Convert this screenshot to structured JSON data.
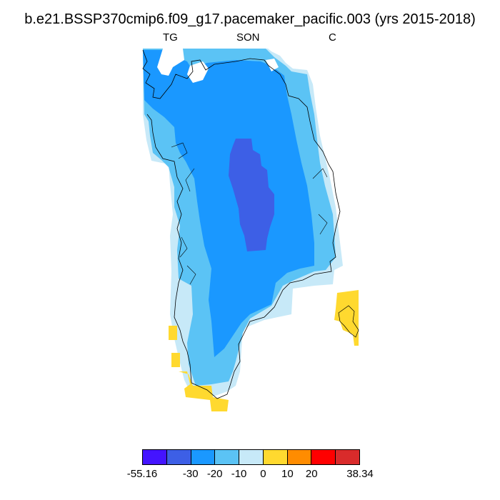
{
  "header": {
    "title": "b.e21.BSSP370cmip6.f09_g17.pacemaker_pacific.003 (yrs 2015-2018)",
    "left_label": "TG",
    "center_label": "SON",
    "right_label": "C"
  },
  "colorbar": {
    "colors": [
      "#4414ff",
      "#3d5fe6",
      "#1a98ff",
      "#5bc3f5",
      "#c7e9f8",
      "#ffd92f",
      "#ff8c00",
      "#ff0000",
      "#d92b2b"
    ],
    "labels": [
      {
        "text": "-55.16",
        "boundary": 0
      },
      {
        "text": "-30",
        "boundary": 2
      },
      {
        "text": "-20",
        "boundary": 3
      },
      {
        "text": "-10",
        "boundary": 4
      },
      {
        "text": "0",
        "boundary": 5
      },
      {
        "text": "10",
        "boundary": 6
      },
      {
        "text": "20",
        "boundary": 7
      },
      {
        "text": "38.34",
        "boundary": 9
      }
    ]
  }
}
